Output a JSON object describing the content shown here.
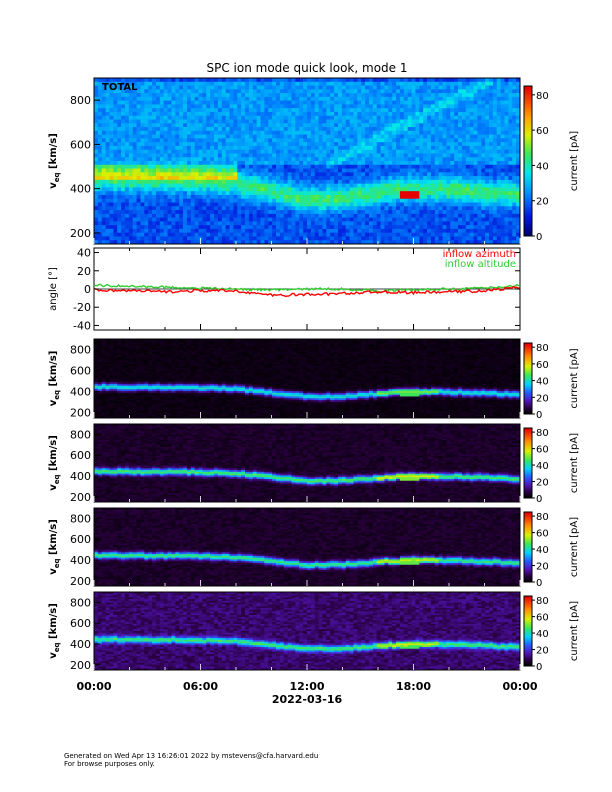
{
  "title": "SPC ion mode quick look, mode 1",
  "time_axis": {
    "tick_labels": [
      "00:00",
      "06:00",
      "12:00",
      "18:00",
      "00:00"
    ],
    "date_label": "2022-03-16"
  },
  "colorbar": {
    "label": "current [pA]",
    "ticks": [
      "0",
      "20",
      "40",
      "60",
      "80"
    ],
    "range": [
      0,
      85
    ]
  },
  "vel_ylabel": "v",
  "vel_ylabel_sub": "eq",
  "vel_ylabel_unit": "[km/s]",
  "top_ticks": [
    "200",
    "400",
    "600",
    "800"
  ],
  "sub_ticks": [
    "200",
    "400",
    "600",
    "800"
  ],
  "panel_label_total": "TOTAL",
  "angle": {
    "ylabel": "angle [°]",
    "ticks": [
      "-40",
      "-20",
      "0",
      "20",
      "40"
    ],
    "legend": [
      "inflow azimuth",
      "inflow altitude"
    ],
    "azimuth_color": "#ff0000",
    "altitude_color": "#33cc33"
  },
  "footer": {
    "line1": "Generated on Wed Apr 13 16:26:01 2022 by mstevens@cfa.harvard.edu",
    "line2": "For browse purposes only."
  },
  "chart_data": {
    "type": "heatmap",
    "title": "SPC ion mode quick look, mode 1",
    "x_ticks_hours": [
      0,
      6,
      12,
      18,
      24
    ],
    "velocity_range": [
      150,
      900
    ],
    "core_velocity": {
      "hours": [
        0,
        2,
        4,
        6,
        8,
        10,
        12,
        14,
        16,
        18,
        20,
        22,
        24
      ],
      "v_kms": [
        445,
        440,
        440,
        435,
        425,
        390,
        350,
        355,
        380,
        400,
        395,
        385,
        370
      ]
    },
    "hot_spot": {
      "hours": [
        17.2,
        18.4
      ],
      "v_kms": 370,
      "current_pA": 80
    },
    "angle_series": {
      "hours": [
        0,
        2,
        4,
        6,
        8,
        10,
        12,
        14,
        16,
        18,
        20,
        22,
        24
      ],
      "azimuth_deg": [
        -1,
        -2,
        -3,
        -2,
        -2,
        -7,
        -6,
        -5,
        -3,
        -4,
        -3,
        -2,
        2
      ],
      "altitude_deg": [
        4,
        3,
        2,
        1,
        0,
        -1,
        0,
        0,
        -2,
        -1,
        0,
        1,
        4
      ]
    }
  }
}
